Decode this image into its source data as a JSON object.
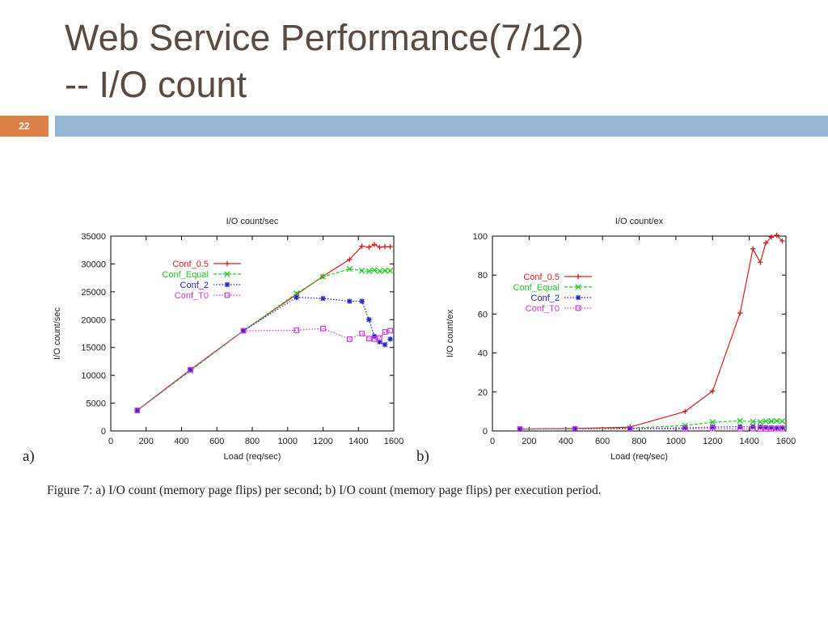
{
  "slide": {
    "title_line1": "Web Service Performance(7/12)",
    "title_line2": "-- I/O count",
    "slide_number": "22",
    "panel_a": "a)",
    "panel_b": "b)",
    "caption": "Figure 7: a) I/O count (memory page flips) per second; b) I/O count (memory page flips) per execution period."
  },
  "colors": {
    "title": "#5a4a3f",
    "number_box": "#dd8047",
    "bar": "#94b6d2"
  },
  "chart_data": [
    {
      "type": "line",
      "title": "I/O count/sec",
      "xlabel": "Load (req/sec)",
      "ylabel": "I/O count/sec",
      "xlim": [
        0,
        1600
      ],
      "ylim": [
        0,
        35000
      ],
      "xticks": [
        0,
        200,
        400,
        600,
        800,
        1000,
        1200,
        1400,
        1600
      ],
      "yticks": [
        0,
        5000,
        10000,
        15000,
        20000,
        25000,
        30000,
        35000
      ],
      "legend_position": "top-left",
      "series": [
        {
          "name": "Conf_0.5",
          "color": "#d62020",
          "dash": "solid",
          "marker": "plus",
          "x": [
            150,
            450,
            750,
            1050,
            1200,
            1350,
            1420,
            1460,
            1490,
            1520,
            1550,
            1580
          ],
          "y": [
            3700,
            11000,
            18000,
            24500,
            27800,
            30800,
            33200,
            33000,
            33500,
            33000,
            33100,
            33100
          ]
        },
        {
          "name": "Conf_Equal",
          "color": "#22cc22",
          "dash": "dashed",
          "marker": "x",
          "x": [
            150,
            450,
            750,
            1050,
            1200,
            1350,
            1420,
            1460,
            1490,
            1520,
            1550,
            1580
          ],
          "y": [
            3700,
            10800,
            18000,
            24700,
            27700,
            29100,
            28800,
            28700,
            28900,
            28700,
            28800,
            28800
          ]
        },
        {
          "name": "Conf_2",
          "color": "#2222cc",
          "dash": "dotted",
          "marker": "star",
          "x": [
            150,
            450,
            750,
            1050,
            1200,
            1350,
            1420,
            1460,
            1490,
            1520,
            1550,
            1580
          ],
          "y": [
            3700,
            11000,
            18000,
            24000,
            23800,
            23300,
            23300,
            20000,
            17000,
            16000,
            15500,
            16500
          ]
        },
        {
          "name": "Conf_T0",
          "color": "#dd33dd",
          "dash": "dotted",
          "marker": "square",
          "x": [
            150,
            450,
            750,
            1050,
            1200,
            1350,
            1420,
            1460,
            1490,
            1520,
            1550,
            1580
          ],
          "y": [
            3700,
            11000,
            18000,
            18100,
            18400,
            16500,
            17500,
            16600,
            16500,
            16700,
            17800,
            18000
          ]
        }
      ]
    },
    {
      "type": "line",
      "title": "I/O count/ex",
      "xlabel": "Load (req/sec)",
      "ylabel": "I/O count/ex",
      "xlim": [
        0,
        1600
      ],
      "ylim": [
        0,
        100
      ],
      "xticks": [
        0,
        200,
        400,
        600,
        800,
        1000,
        1200,
        1400,
        1600
      ],
      "yticks": [
        0,
        20,
        40,
        60,
        80,
        100
      ],
      "legend_position": "top-left",
      "series": [
        {
          "name": "Conf_0.5",
          "color": "#d62020",
          "dash": "solid",
          "marker": "plus",
          "x": [
            150,
            450,
            750,
            1050,
            1200,
            1350,
            1420,
            1460,
            1490,
            1520,
            1550,
            1580
          ],
          "y": [
            1,
            1.3,
            2,
            10,
            20.5,
            60.5,
            93.5,
            86.5,
            96.5,
            99.5,
            100.5,
            97.5
          ]
        },
        {
          "name": "Conf_Equal",
          "color": "#22cc22",
          "dash": "dashed",
          "marker": "x",
          "x": [
            150,
            450,
            750,
            1050,
            1200,
            1350,
            1420,
            1460,
            1490,
            1520,
            1550,
            1580
          ],
          "y": [
            1,
            1.2,
            1.5,
            2.8,
            4.5,
            5.2,
            4.8,
            4.6,
            5.0,
            5.1,
            5.2,
            5.0
          ]
        },
        {
          "name": "Conf_2",
          "color": "#2222cc",
          "dash": "dotted",
          "marker": "star",
          "x": [
            150,
            450,
            750,
            1050,
            1200,
            1350,
            1420,
            1460,
            1490,
            1520,
            1550,
            1580
          ],
          "y": [
            1,
            1.1,
            1.3,
            1.6,
            2.0,
            2.2,
            2.2,
            2.0,
            1.8,
            1.7,
            1.6,
            1.7
          ]
        },
        {
          "name": "Conf_T0",
          "color": "#dd33dd",
          "dash": "dotted",
          "marker": "square",
          "x": [
            150,
            450,
            750,
            1050,
            1200,
            1350,
            1420,
            1460,
            1490,
            1520,
            1550,
            1580
          ],
          "y": [
            1,
            1.0,
            1.1,
            1.1,
            1.2,
            1.1,
            1.2,
            1.1,
            1.1,
            1.1,
            1.2,
            1.2
          ]
        }
      ]
    }
  ]
}
